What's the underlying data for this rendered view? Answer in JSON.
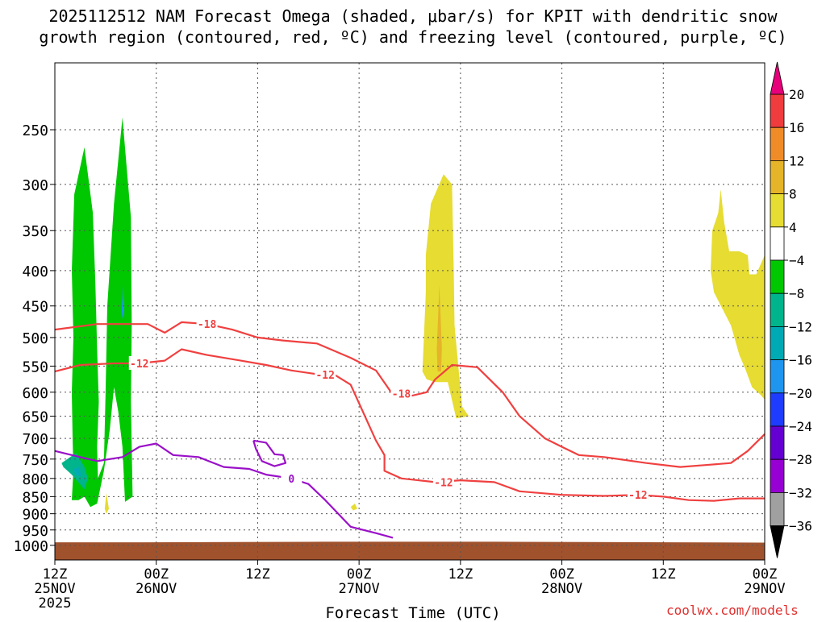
{
  "title_line1": "2025112512 NAM Forecast Omega (shaded, μbar/s) for KPIT with dendritic snow",
  "title_line2": "growth region (contoured, red, ºC) and freezing level (contoured, purple, ºC)",
  "credit": "coolwx.com/models",
  "chart_data": {
    "type": "heatmap",
    "title": "2025112512 NAM Forecast Omega (shaded, μbar/s) for KPIT with dendritic snow growth region (contoured, red, ºC) and freezing level (contoured, purple, ºC)",
    "xlabel": "Forecast Time (UTC)",
    "ylabel": "",
    "x_ticks": [
      {
        "h": 0,
        "line1": "12Z",
        "line2": "25NOV",
        "line3": "2025"
      },
      {
        "h": 12,
        "line1": "00Z",
        "line2": "26NOV",
        "line3": ""
      },
      {
        "h": 24,
        "line1": "12Z",
        "line2": "",
        "line3": ""
      },
      {
        "h": 36,
        "line1": "00Z",
        "line2": "27NOV",
        "line3": ""
      },
      {
        "h": 48,
        "line1": "12Z",
        "line2": "",
        "line3": ""
      },
      {
        "h": 60,
        "line1": "00Z",
        "line2": "28NOV",
        "line3": ""
      },
      {
        "h": 72,
        "line1": "12Z",
        "line2": "",
        "line3": ""
      },
      {
        "h": 84,
        "line1": "00Z",
        "line2": "29NOV",
        "line3": ""
      }
    ],
    "xlim_hours": [
      0,
      84
    ],
    "y_ticks": [
      250,
      300,
      350,
      400,
      450,
      500,
      550,
      600,
      650,
      700,
      750,
      800,
      850,
      900,
      950,
      1000
    ],
    "ylim_mb": [
      1050,
      200
    ],
    "colorbar": {
      "labels": [
        "20",
        "16",
        "12",
        "8",
        "4",
        "−4",
        "−8",
        "−12",
        "−16",
        "−20",
        "−24",
        "−28",
        "−32",
        "−36"
      ],
      "colors": [
        "#f03c3c",
        "#f08c28",
        "#e6b428",
        "#e6dc32",
        "#ffffff",
        "#00c800",
        "#00b48c",
        "#00aab4",
        "#1e96f0",
        "#1e3cff",
        "#6400d2",
        "#9600d2",
        "#a0a0a0"
      ],
      "top_color": "#e6007a",
      "bottom_color": "#000000"
    },
    "ground_color": "#a0522d",
    "ground_top_mb": [
      990,
      990,
      989,
      988,
      988,
      988,
      989,
      990,
      991
    ],
    "omega_regions": [
      {
        "value_range": "-8 to -4",
        "color": "#00c800",
        "points": [
          [
            2.0,
            860
          ],
          [
            2.2,
            780
          ],
          [
            2.1,
            700
          ],
          [
            2.0,
            600
          ],
          [
            2.2,
            500
          ],
          [
            2.0,
            400
          ],
          [
            2.3,
            310
          ],
          [
            3.5,
            265
          ],
          [
            4.5,
            330
          ],
          [
            4.8,
            420
          ],
          [
            5.0,
            520
          ],
          [
            5.2,
            620
          ],
          [
            5.0,
            720
          ],
          [
            5.1,
            800
          ],
          [
            5.8,
            760
          ],
          [
            6.0,
            600
          ],
          [
            6.2,
            450
          ],
          [
            7.0,
            320
          ],
          [
            8.0,
            240
          ],
          [
            9.0,
            335
          ],
          [
            9.1,
            480
          ],
          [
            9.0,
            620
          ],
          [
            9.2,
            850
          ],
          [
            8.3,
            865
          ],
          [
            8.0,
            720
          ],
          [
            7.5,
            640
          ],
          [
            7.0,
            590
          ],
          [
            6.5,
            680
          ],
          [
            5.8,
            780
          ],
          [
            5.0,
            870
          ],
          [
            4.2,
            880
          ],
          [
            3.5,
            850
          ],
          [
            2.8,
            860
          ]
        ]
      },
      {
        "value_range": "-12 to -8",
        "color": "#00b48c",
        "points": [
          [
            0.8,
            760
          ],
          [
            2.5,
            735
          ],
          [
            3.5,
            770
          ],
          [
            3.9,
            800
          ],
          [
            3.5,
            830
          ],
          [
            2.0,
            790
          ],
          [
            1.0,
            770
          ]
        ]
      },
      {
        "value_range": "-16 to -12",
        "color": "#1e96f0",
        "points": [
          [
            7.9,
            455
          ],
          [
            8.1,
            420
          ],
          [
            8.2,
            460
          ],
          [
            8.0,
            470
          ]
        ]
      },
      {
        "value_range": "-16 to -12",
        "color": "#00aab4",
        "points": [
          [
            2.2,
            775
          ],
          [
            2.9,
            770
          ],
          [
            3.1,
            795
          ],
          [
            2.4,
            790
          ]
        ]
      },
      {
        "value_range": "4 to 8",
        "color": "#e6dc32",
        "points": [
          [
            43.5,
            560
          ],
          [
            43.9,
            430
          ],
          [
            43.9,
            380
          ],
          [
            44.5,
            320
          ],
          [
            46.0,
            290
          ],
          [
            47.0,
            300
          ],
          [
            47.2,
            400
          ],
          [
            47.3,
            480
          ],
          [
            47.8,
            560
          ],
          [
            48.2,
            630
          ],
          [
            49.0,
            650
          ],
          [
            47.5,
            655
          ],
          [
            46.5,
            580
          ],
          [
            45.0,
            580
          ],
          [
            44.0,
            575
          ]
        ]
      },
      {
        "value_range": "8 to 12",
        "color": "#e6b428",
        "points": [
          [
            45.2,
            520
          ],
          [
            45.5,
            420
          ],
          [
            45.8,
            520
          ],
          [
            45.7,
            560
          ],
          [
            45.3,
            560
          ]
        ]
      },
      {
        "value_range": "4 to 8",
        "color": "#e6dc32",
        "points": [
          [
            5.9,
            885
          ],
          [
            6.1,
            840
          ],
          [
            6.4,
            885
          ],
          [
            6.1,
            900
          ]
        ]
      },
      {
        "value_range": "4 to 8",
        "color": "#e6dc32",
        "points": [
          [
            35.0,
            880
          ],
          [
            35.5,
            870
          ],
          [
            35.8,
            885
          ],
          [
            35.3,
            890
          ]
        ]
      },
      {
        "value_range": "4 to 8",
        "color": "#e6dc32",
        "points": [
          [
            77.8,
            350
          ],
          [
            78.5,
            330
          ],
          [
            78.8,
            305
          ],
          [
            79.2,
            340
          ],
          [
            79.8,
            375
          ],
          [
            81.0,
            375
          ],
          [
            82.0,
            380
          ],
          [
            82.2,
            405
          ],
          [
            83.0,
            405
          ],
          [
            84.0,
            380
          ],
          [
            84.0,
            615
          ],
          [
            83.5,
            605
          ],
          [
            82.5,
            590
          ],
          [
            81.7,
            555
          ],
          [
            81.0,
            530
          ],
          [
            80.0,
            480
          ],
          [
            78.0,
            430
          ],
          [
            77.6,
            400
          ]
        ]
      }
    ],
    "red_contours": [
      {
        "label": "-18",
        "label_at_h": 17,
        "points": [
          [
            0,
            487
          ],
          [
            5,
            478
          ],
          [
            11,
            478
          ],
          [
            13,
            492
          ],
          [
            15,
            475
          ],
          [
            18,
            478
          ],
          [
            21,
            487
          ],
          [
            24,
            500
          ],
          [
            27,
            505
          ],
          [
            31,
            510
          ],
          [
            35,
            535
          ],
          [
            38,
            558
          ],
          [
            40,
            605
          ],
          [
            42,
            608
          ],
          [
            44,
            600
          ],
          [
            45,
            575
          ],
          [
            47,
            548
          ],
          [
            50,
            552
          ],
          [
            53,
            600
          ],
          [
            55,
            650
          ],
          [
            58,
            700
          ],
          [
            60,
            720
          ],
          [
            62,
            740
          ],
          [
            65,
            745
          ],
          [
            70,
            760
          ],
          [
            74,
            770
          ],
          [
            77,
            765
          ],
          [
            80,
            760
          ],
          [
            82,
            730
          ],
          [
            84,
            690
          ]
        ]
      },
      {
        "label": "-18",
        "label_at_h": 41,
        "points": [
          [
            40,
            605
          ],
          [
            41,
            603
          ]
        ]
      },
      {
        "label": "-12",
        "label_at_h": 9,
        "points": [
          [
            0,
            560
          ],
          [
            3,
            548
          ],
          [
            7,
            545
          ],
          [
            10,
            545
          ],
          [
            13,
            540
          ],
          [
            15,
            520
          ],
          [
            18,
            530
          ],
          [
            22,
            540
          ],
          [
            25,
            548
          ],
          [
            28,
            558
          ],
          [
            31,
            565
          ],
          [
            33,
            565
          ],
          [
            35,
            585
          ],
          [
            38,
            705
          ],
          [
            39,
            740
          ],
          [
            39,
            780
          ],
          [
            41,
            800
          ],
          [
            45,
            810
          ],
          [
            48,
            805
          ],
          [
            52,
            810
          ],
          [
            55,
            835
          ],
          [
            60,
            845
          ],
          [
            65,
            848
          ],
          [
            69,
            845
          ],
          [
            72,
            850
          ],
          [
            75,
            860
          ],
          [
            78,
            862
          ],
          [
            81,
            855
          ],
          [
            84,
            855
          ]
        ]
      },
      {
        "label": "-12",
        "label_at_h": 32,
        "points": [
          [
            31,
            565
          ],
          [
            32,
            566
          ]
        ]
      },
      {
        "label": "-12",
        "label_at_h": 46,
        "points": [
          [
            45,
            810
          ],
          [
            46,
            810
          ]
        ]
      },
      {
        "label": "-12",
        "label_at_h": 69,
        "points": [
          [
            68,
            845
          ],
          [
            69,
            845
          ]
        ]
      }
    ],
    "purple_contours": [
      {
        "label": "0",
        "label_at_h": 27,
        "points": [
          [
            0,
            730
          ],
          [
            2,
            740
          ],
          [
            5,
            755
          ],
          [
            8,
            745
          ],
          [
            10,
            720
          ],
          [
            12,
            712
          ],
          [
            14,
            740
          ],
          [
            17,
            745
          ],
          [
            20,
            770
          ],
          [
            23,
            775
          ],
          [
            25,
            790
          ],
          [
            28,
            800
          ],
          [
            30,
            815
          ],
          [
            32,
            860
          ],
          [
            35,
            940
          ],
          [
            38,
            960
          ],
          [
            40,
            975
          ]
        ]
      },
      {
        "label": "",
        "label_at_h": null,
        "points": [
          [
            23.5,
            705
          ],
          [
            25,
            710
          ],
          [
            26,
            738
          ],
          [
            27,
            740
          ],
          [
            27.3,
            760
          ],
          [
            26,
            768
          ],
          [
            24.5,
            755
          ],
          [
            23.8,
            725
          ],
          [
            23.5,
            705
          ]
        ]
      }
    ]
  }
}
